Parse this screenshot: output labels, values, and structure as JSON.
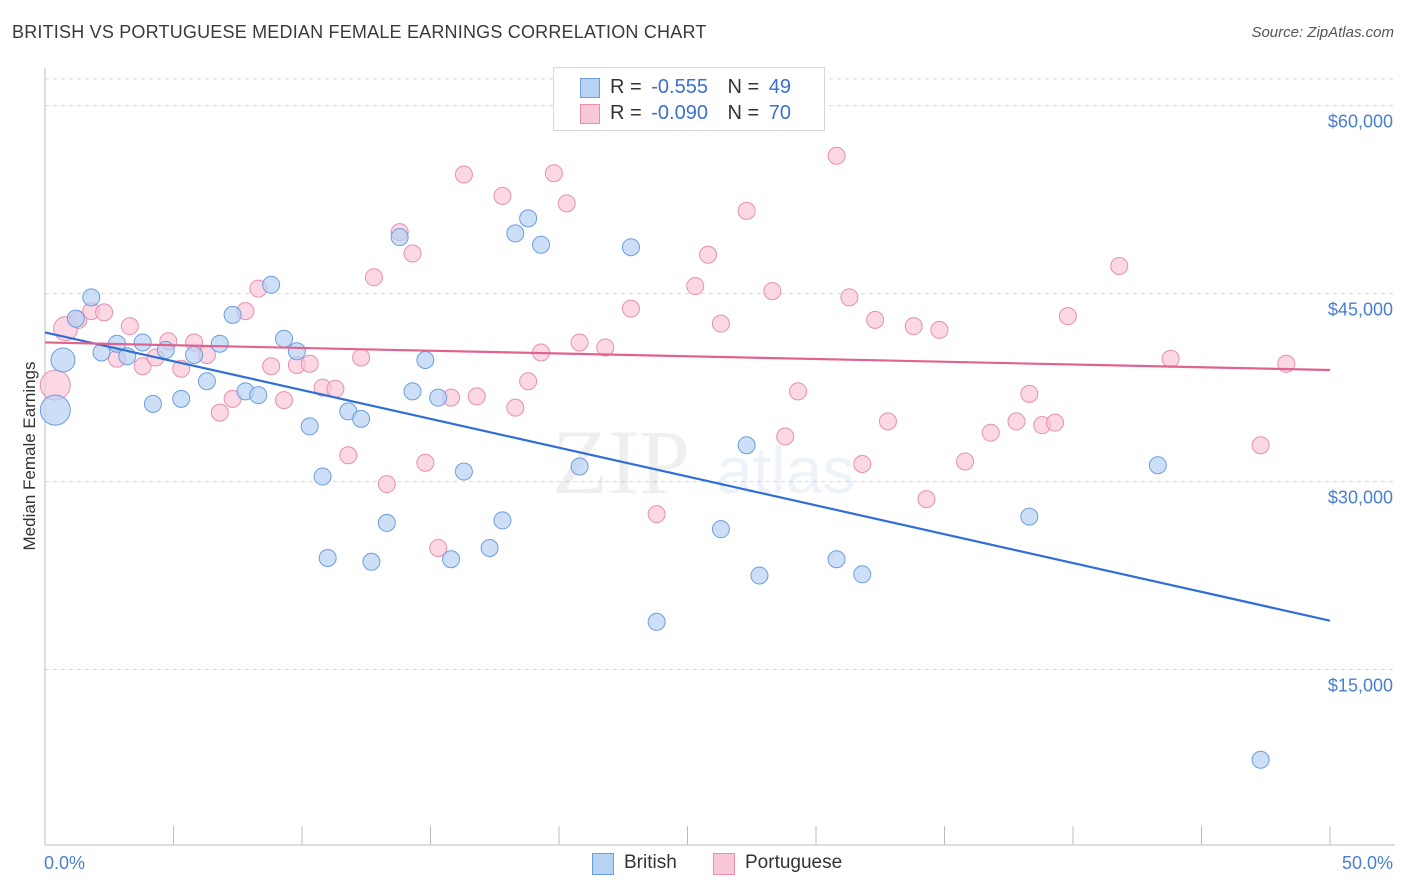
{
  "header": {
    "title": "BRITISH VS PORTUGUESE MEDIAN FEMALE EARNINGS CORRELATION CHART",
    "source": "Source: ZipAtlas.com"
  },
  "legend": {
    "rows": [
      {
        "r_label": "R =",
        "r_value": "-0.555",
        "n_label": "N =",
        "n_value": "49"
      },
      {
        "r_label": "R =",
        "r_value": "-0.090",
        "n_label": "N =",
        "n_value": "70"
      }
    ],
    "bottom": [
      "British",
      "Portuguese"
    ]
  },
  "watermark": {
    "zip": "ZIP",
    "atlas": "atlas"
  },
  "colors": {
    "british_fill": "#b8d2f4",
    "british_stroke": "#6c9ddf",
    "british_line": "#2f6fd6",
    "portuguese_fill": "#f9c8d8",
    "portuguese_stroke": "#e88faf",
    "portuguese_line": "#e0638f",
    "tick_text": "#4a7fd0",
    "grid": "#d9d9d9"
  },
  "chart_data": {
    "type": "scatter",
    "title": "BRITISH VS PORTUGUESE MEDIAN FEMALE EARNINGS CORRELATION CHART",
    "xlabel": "",
    "ylabel": "Median Female Earnings",
    "xlim": [
      0,
      50
    ],
    "ylim": [
      1000,
      63000
    ],
    "x_tick_labels": [
      "0.0%",
      "50.0%"
    ],
    "y_ticks": [
      15000,
      30000,
      45000,
      60000
    ],
    "y_tick_labels": [
      "$15,000",
      "$30,000",
      "$45,000",
      "$60,000"
    ],
    "grid": true,
    "legend_position": "top-center",
    "series": [
      {
        "name": "British",
        "r": -0.555,
        "n": 49,
        "trend": {
          "x": [
            0,
            50
          ],
          "y": [
            41900,
            18900
          ]
        },
        "points": [
          [
            0.4,
            35700
          ],
          [
            0.7,
            39700
          ],
          [
            1.2,
            43000
          ],
          [
            1.8,
            44700
          ],
          [
            2.2,
            40300
          ],
          [
            2.8,
            41000
          ],
          [
            3.2,
            40000
          ],
          [
            3.8,
            41100
          ],
          [
            4.2,
            36200
          ],
          [
            4.7,
            40500
          ],
          [
            5.3,
            36600
          ],
          [
            5.8,
            40100
          ],
          [
            6.3,
            38000
          ],
          [
            6.8,
            41000
          ],
          [
            7.3,
            43300
          ],
          [
            7.8,
            37200
          ],
          [
            8.3,
            36900
          ],
          [
            8.8,
            45700
          ],
          [
            9.3,
            41400
          ],
          [
            9.8,
            40400
          ],
          [
            10.3,
            34400
          ],
          [
            10.8,
            30400
          ],
          [
            11.0,
            23900
          ],
          [
            11.8,
            35600
          ],
          [
            12.3,
            35000
          ],
          [
            12.7,
            23600
          ],
          [
            13.3,
            26700
          ],
          [
            13.8,
            49500
          ],
          [
            14.3,
            37200
          ],
          [
            14.8,
            39700
          ],
          [
            15.3,
            36700
          ],
          [
            15.8,
            23800
          ],
          [
            16.3,
            30800
          ],
          [
            17.3,
            24700
          ],
          [
            17.8,
            26900
          ],
          [
            18.3,
            49800
          ],
          [
            18.8,
            51000
          ],
          [
            19.3,
            48900
          ],
          [
            20.8,
            31200
          ],
          [
            22.8,
            48700
          ],
          [
            23.8,
            18800
          ],
          [
            26.3,
            26200
          ],
          [
            27.3,
            32900
          ],
          [
            27.8,
            22500
          ],
          [
            30.8,
            23800
          ],
          [
            31.8,
            22600
          ],
          [
            38.3,
            27200
          ],
          [
            43.3,
            31300
          ],
          [
            47.3,
            7800
          ]
        ]
      },
      {
        "name": "Portuguese",
        "r": -0.09,
        "n": 70,
        "trend": {
          "x": [
            0,
            50
          ],
          "y": [
            41100,
            38900
          ]
        },
        "points": [
          [
            0.4,
            37700
          ],
          [
            0.8,
            42200
          ],
          [
            1.3,
            42900
          ],
          [
            1.8,
            43600
          ],
          [
            2.3,
            43500
          ],
          [
            2.8,
            39800
          ],
          [
            3.3,
            42400
          ],
          [
            3.8,
            39200
          ],
          [
            4.3,
            39900
          ],
          [
            4.8,
            41200
          ],
          [
            5.3,
            39000
          ],
          [
            5.8,
            41100
          ],
          [
            6.3,
            40100
          ],
          [
            6.8,
            35500
          ],
          [
            7.3,
            36600
          ],
          [
            7.8,
            43600
          ],
          [
            8.3,
            45400
          ],
          [
            8.8,
            39200
          ],
          [
            9.3,
            36500
          ],
          [
            9.8,
            39300
          ],
          [
            10.3,
            39400
          ],
          [
            10.8,
            37500
          ],
          [
            11.3,
            37400
          ],
          [
            11.8,
            32100
          ],
          [
            12.3,
            39900
          ],
          [
            12.8,
            46300
          ],
          [
            13.3,
            29800
          ],
          [
            13.8,
            49900
          ],
          [
            14.3,
            48200
          ],
          [
            14.8,
            31500
          ],
          [
            15.3,
            24700
          ],
          [
            15.8,
            36700
          ],
          [
            16.3,
            54500
          ],
          [
            16.8,
            36800
          ],
          [
            17.8,
            52800
          ],
          [
            18.3,
            35900
          ],
          [
            18.8,
            38000
          ],
          [
            19.3,
            40300
          ],
          [
            19.8,
            54600
          ],
          [
            20.3,
            52200
          ],
          [
            20.8,
            41100
          ],
          [
            21.8,
            40700
          ],
          [
            22.8,
            43800
          ],
          [
            23.8,
            27400
          ],
          [
            25.3,
            45600
          ],
          [
            25.8,
            48100
          ],
          [
            26.3,
            42600
          ],
          [
            27.3,
            51600
          ],
          [
            28.3,
            45200
          ],
          [
            28.8,
            33600
          ],
          [
            29.3,
            37200
          ],
          [
            30.8,
            56000
          ],
          [
            31.3,
            44700
          ],
          [
            31.8,
            31400
          ],
          [
            32.3,
            42900
          ],
          [
            32.8,
            34800
          ],
          [
            33.8,
            42400
          ],
          [
            34.3,
            28600
          ],
          [
            34.8,
            42100
          ],
          [
            35.8,
            31600
          ],
          [
            36.8,
            33900
          ],
          [
            37.8,
            34800
          ],
          [
            38.3,
            37000
          ],
          [
            38.8,
            34500
          ],
          [
            39.3,
            34700
          ],
          [
            39.8,
            43200
          ],
          [
            41.8,
            47200
          ],
          [
            43.8,
            39800
          ],
          [
            47.3,
            32900
          ],
          [
            48.3,
            39400
          ]
        ]
      }
    ]
  }
}
